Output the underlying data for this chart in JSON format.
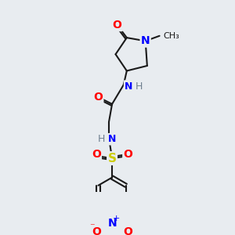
{
  "bg_color": "#e8ecf0",
  "bond_color": "#1a1a1a",
  "line_width": 1.5,
  "atom_colors": {
    "O": "#ff0000",
    "N": "#0000ff",
    "S": "#cccc00",
    "H": "#708090",
    "C": "#1a1a1a"
  },
  "font_size": 9
}
